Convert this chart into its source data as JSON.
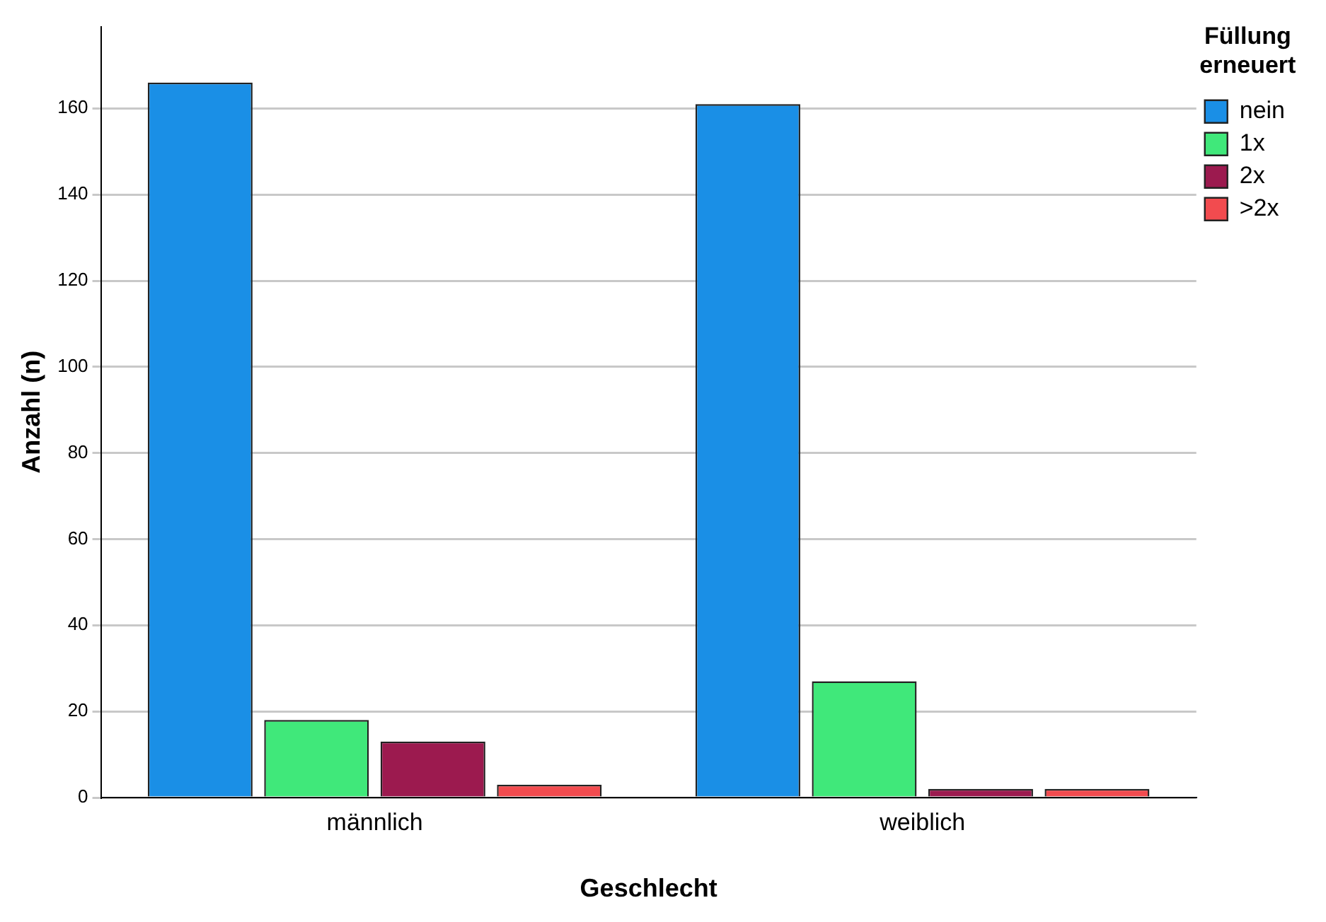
{
  "chart_data": {
    "type": "bar",
    "xlabel": "Geschlecht",
    "ylabel": "Anzahl (n)",
    "legend_title": "Füllung erneuert",
    "categories": [
      "männlich",
      "weiblich"
    ],
    "series": [
      {
        "name": "nein",
        "color": "#1a8fe6",
        "values": [
          166,
          161
        ]
      },
      {
        "name": "1x",
        "color": "#40e87a",
        "values": [
          18,
          27
        ]
      },
      {
        "name": "2x",
        "color": "#9c1a4f",
        "values": [
          13,
          2
        ]
      },
      {
        "name": ">2x",
        "color": "#f24b4f",
        "values": [
          3,
          2
        ]
      }
    ],
    "ylim": [
      0,
      179
    ],
    "yticks": [
      0,
      20,
      40,
      60,
      80,
      100,
      120,
      140,
      160
    ],
    "grid": "y",
    "legend": "top right"
  }
}
